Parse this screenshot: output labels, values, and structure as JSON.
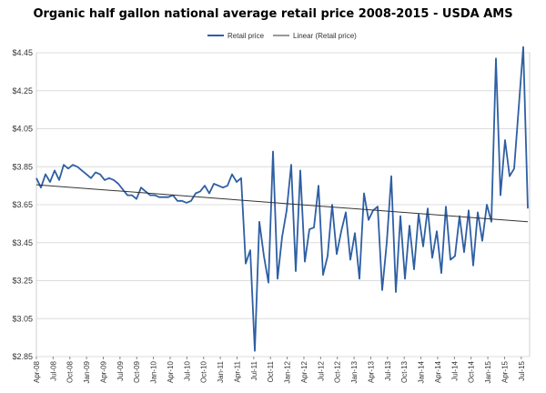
{
  "chart_data": {
    "type": "line",
    "title": "Organic half gallon national average retail price 2008-2015 - USDA AMS",
    "xlabel": "",
    "ylabel": "",
    "ylim": [
      2.85,
      4.45
    ],
    "yticks": [
      4.45,
      4.25,
      4.05,
      3.85,
      3.65,
      3.45,
      3.25,
      3.05,
      2.85
    ],
    "ytick_labels": [
      "$4.45",
      "$4.25",
      "$4.05",
      "$3.85",
      "$3.65",
      "$3.45",
      "$3.25",
      "$3.05",
      "$2.85"
    ],
    "xtick_labels": [
      "Apr-08",
      "Jul-08",
      "Oct-08",
      "Jan-09",
      "Apr-09",
      "Jul-09",
      "Oct-09",
      "Jan-10",
      "Apr-10",
      "Jul-10",
      "Oct-10",
      "Jan-11",
      "Apr-11",
      "Jul-11",
      "Oct-11",
      "Jan-12",
      "Apr-12",
      "Jul-12",
      "Oct-12",
      "Jan-13",
      "Apr-13",
      "Jul-13",
      "Oct-13",
      "Jan-14",
      "Apr-14",
      "Jul-14",
      "Oct-14",
      "Jan-15",
      "Apr-15",
      "Jul-15"
    ],
    "legend": {
      "position": "top-center",
      "entries": [
        "Retail price",
        "Linear (Retail price)"
      ]
    },
    "series": [
      {
        "name": "Retail price",
        "color": "#2e5fa3",
        "values": [
          3.79,
          3.74,
          3.81,
          3.77,
          3.83,
          3.78,
          3.86,
          3.84,
          3.86,
          3.85,
          3.83,
          3.81,
          3.79,
          3.82,
          3.81,
          3.78,
          3.79,
          3.78,
          3.76,
          3.73,
          3.7,
          3.7,
          3.68,
          3.74,
          3.72,
          3.7,
          3.7,
          3.69,
          3.69,
          3.69,
          3.7,
          3.67,
          3.67,
          3.66,
          3.67,
          3.71,
          3.72,
          3.75,
          3.71,
          3.76,
          3.75,
          3.74,
          3.75,
          3.81,
          3.77,
          3.79,
          3.34,
          3.41,
          2.88,
          3.56,
          3.38,
          3.24,
          3.93,
          3.26,
          3.48,
          3.62,
          3.86,
          3.3,
          3.83,
          3.35,
          3.52,
          3.53,
          3.75,
          3.28,
          3.38,
          3.65,
          3.39,
          3.51,
          3.61,
          3.36,
          3.5,
          3.26,
          3.71,
          3.57,
          3.62,
          3.64,
          3.2,
          3.45,
          3.8,
          3.19,
          3.59,
          3.26,
          3.54,
          3.31,
          3.6,
          3.43,
          3.63,
          3.37,
          3.51,
          3.29,
          3.64,
          3.36,
          3.38,
          3.59,
          3.4,
          3.62,
          3.33,
          3.61,
          3.46,
          3.65,
          3.56,
          4.42,
          3.7,
          3.99,
          3.8,
          3.84,
          4.16,
          4.48,
          3.63
        ]
      },
      {
        "name": "Linear (Retail price)",
        "color": "#333333",
        "values": [
          3.755,
          3.56
        ]
      }
    ]
  }
}
